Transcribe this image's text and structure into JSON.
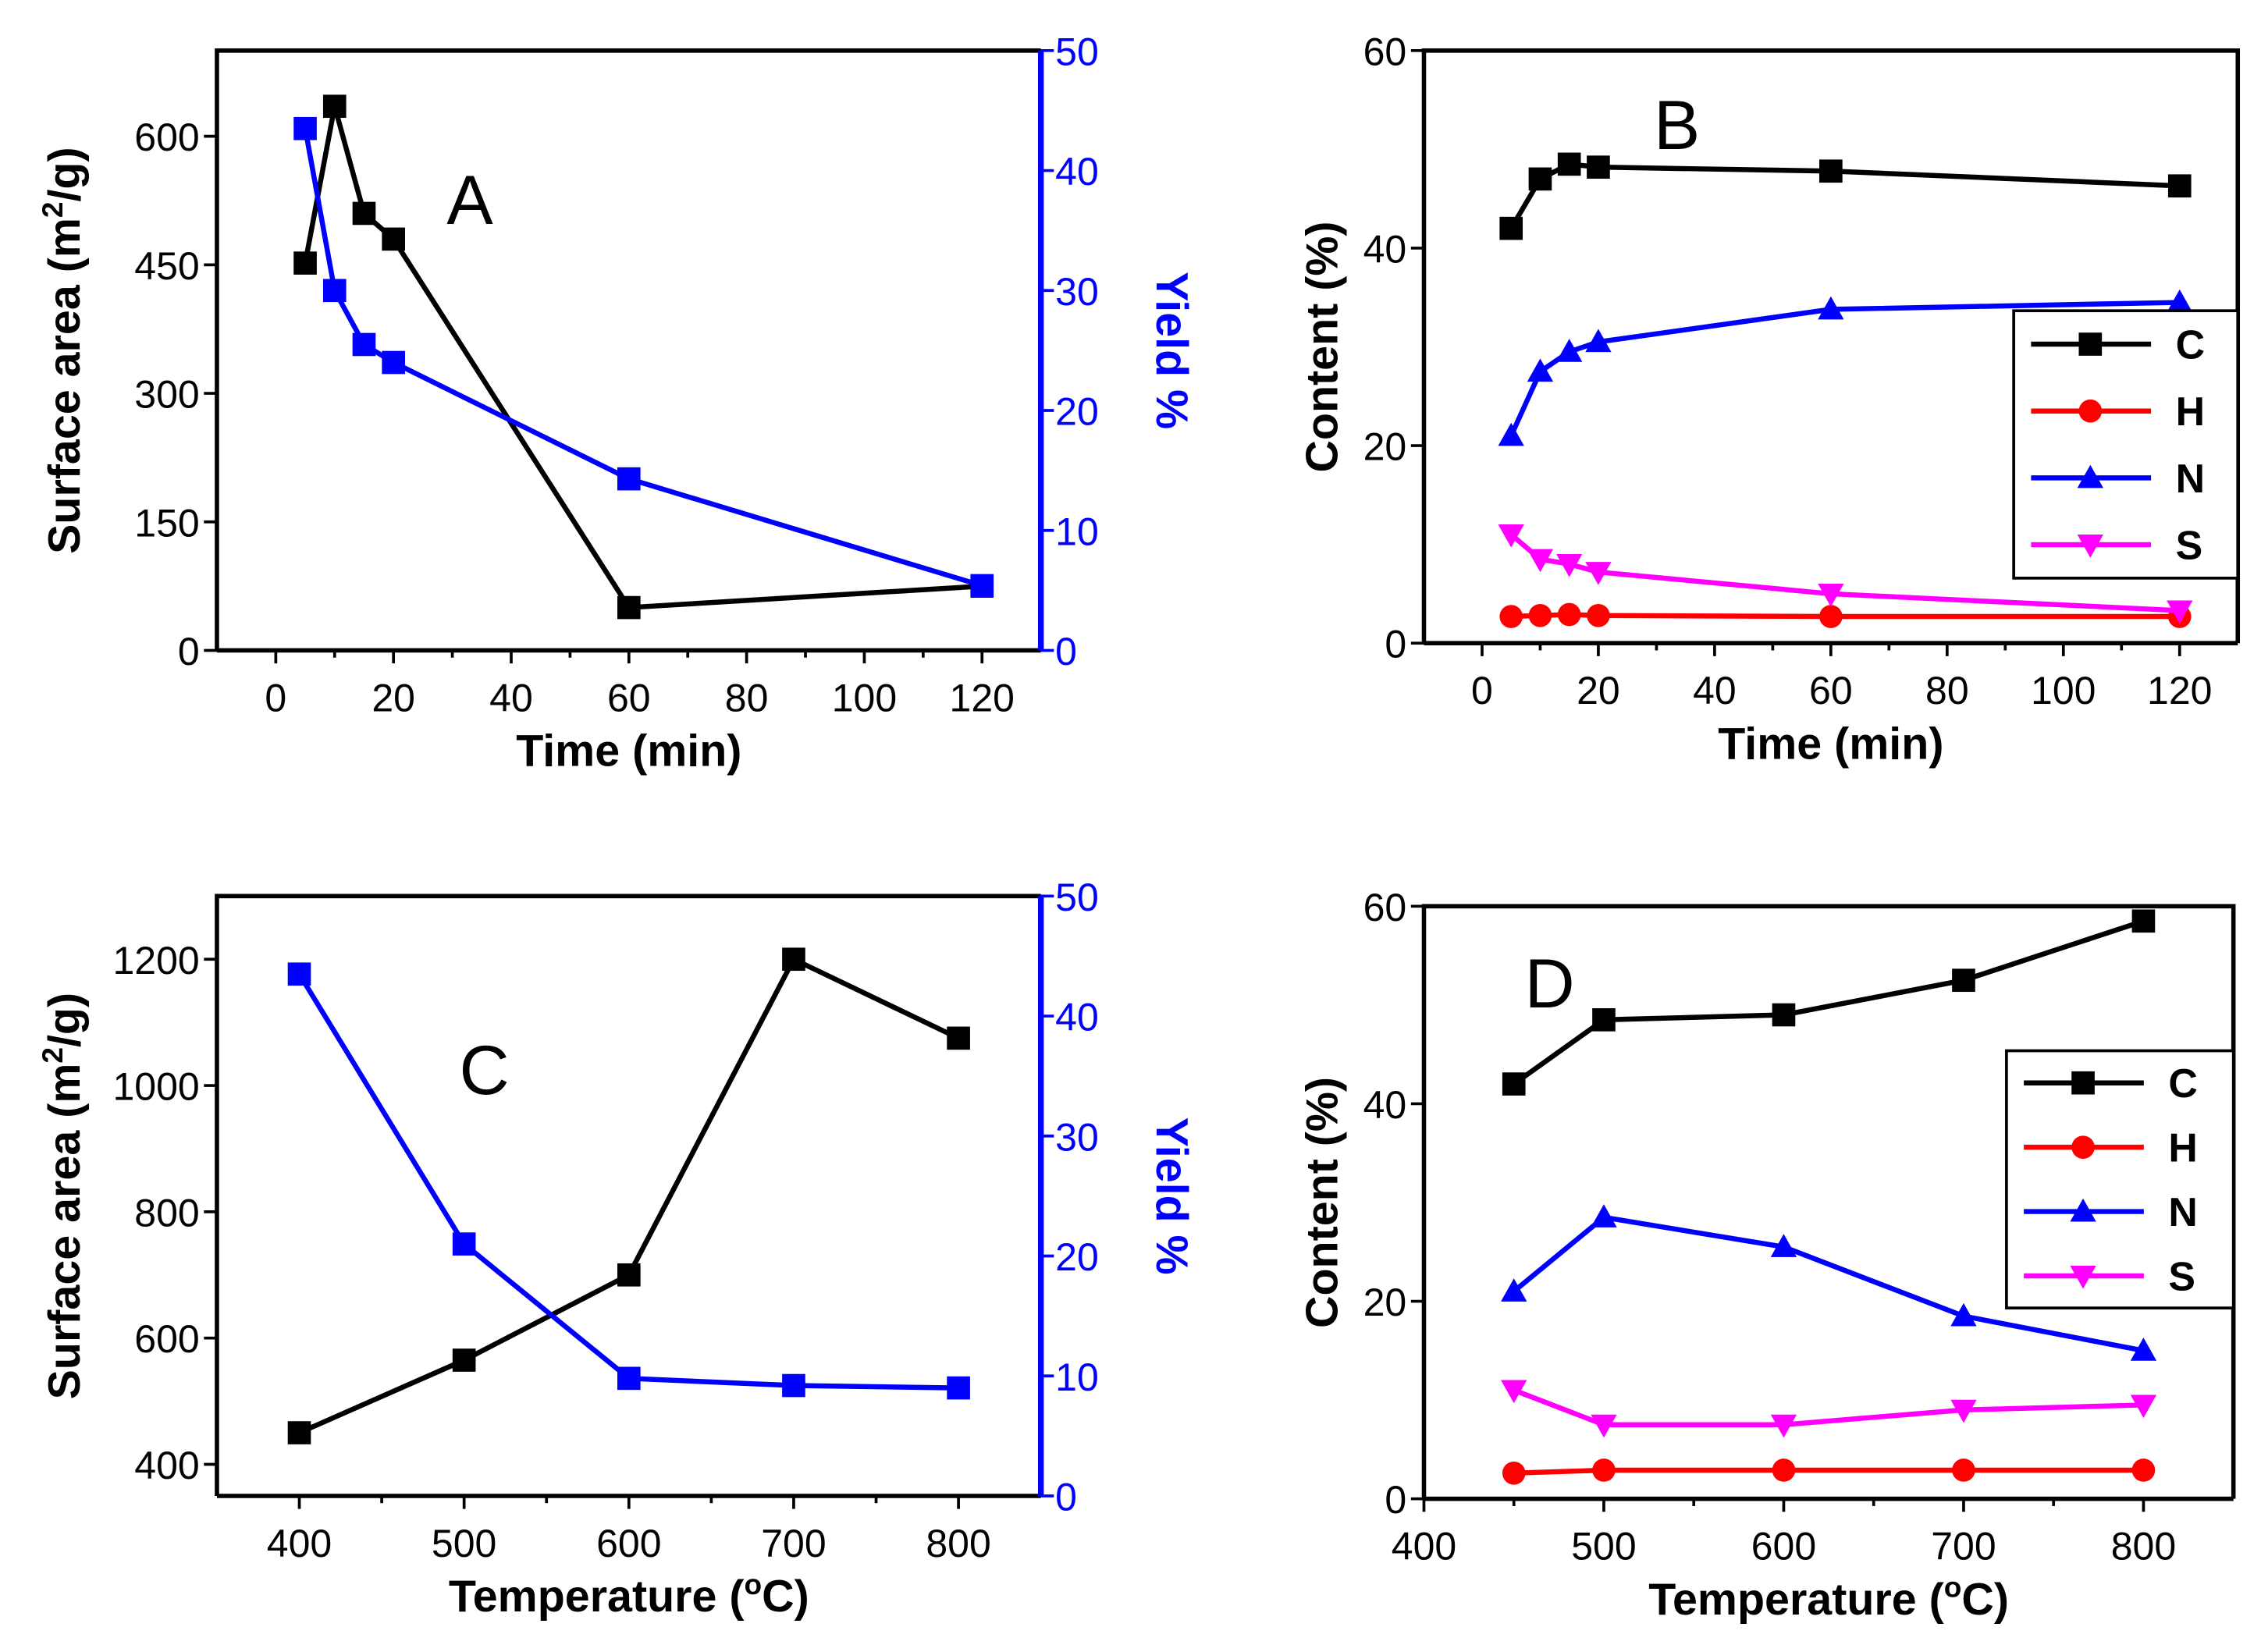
{
  "chart_data": [
    {
      "type": "line",
      "panel_label": "A",
      "xlabel": "Time (min)",
      "ylabel": "Surface area (m2/g)",
      "ylabel_parts": [
        "Surface area (m",
        "2",
        "/g)"
      ],
      "y2label": "Yield %",
      "xlim": [
        -10,
        130
      ],
      "ylim": [
        0,
        700
      ],
      "y2lim": [
        0,
        50
      ],
      "xticks": [
        0,
        20,
        40,
        60,
        80,
        100,
        120
      ],
      "yticks": [
        0,
        150,
        300,
        450,
        600
      ],
      "y2ticks": [
        0,
        10,
        20,
        30,
        40,
        50
      ],
      "x": [
        5,
        10,
        15,
        20,
        60,
        120
      ],
      "series": [
        {
          "name": "Surface area",
          "axis": "left",
          "color": "#000000",
          "marker": "square",
          "values": [
            452,
            635,
            510,
            480,
            50,
            75
          ]
        },
        {
          "name": "Yield",
          "axis": "right",
          "color": "#0000ff",
          "marker": "square",
          "values": [
            43.5,
            30,
            25.5,
            24,
            14.3,
            5.4
          ]
        }
      ]
    },
    {
      "type": "line",
      "panel_label": "B",
      "xlabel": "Time (min)",
      "ylabel": "Content (%)",
      "xlim": [
        -10,
        130
      ],
      "ylim": [
        0,
        60
      ],
      "xticks": [
        0,
        20,
        40,
        60,
        80,
        100,
        120
      ],
      "yticks": [
        0,
        20,
        40,
        60
      ],
      "legend": "right",
      "x": [
        5,
        10,
        15,
        20,
        60,
        120
      ],
      "series": [
        {
          "name": "C",
          "color": "#000000",
          "marker": "square",
          "values": [
            42,
            47,
            48.5,
            48.2,
            47.8,
            46.3
          ]
        },
        {
          "name": "H",
          "color": "#ff0000",
          "marker": "circle",
          "values": [
            2.7,
            2.8,
            2.9,
            2.8,
            2.7,
            2.7
          ]
        },
        {
          "name": "N",
          "color": "#0000ff",
          "marker": "triangle-up",
          "values": [
            21,
            27.5,
            29.5,
            30.5,
            33.8,
            34.5
          ]
        },
        {
          "name": "S",
          "color": "#ff00ff",
          "marker": "triangle-down",
          "values": [
            11,
            8.5,
            8,
            7.2,
            5,
            3.3
          ]
        }
      ]
    },
    {
      "type": "line",
      "panel_label": "C",
      "xlabel": "Temperature (oC)",
      "xlabel_parts": [
        "Temperature (",
        "o",
        "C)"
      ],
      "ylabel": "Surface area (m2/g)",
      "ylabel_parts": [
        "Surface area (m",
        "2",
        "/g)"
      ],
      "y2label": "Yield %",
      "xlim": [
        350,
        850
      ],
      "ylim": [
        350,
        1300
      ],
      "y2lim": [
        0,
        50
      ],
      "xticks": [
        400,
        500,
        600,
        700,
        800
      ],
      "yticks": [
        400,
        600,
        800,
        1000,
        1200
      ],
      "y2ticks": [
        0,
        10,
        20,
        30,
        40,
        50
      ],
      "x": [
        400,
        500,
        600,
        700,
        800
      ],
      "series": [
        {
          "name": "Surface area",
          "axis": "left",
          "color": "#000000",
          "marker": "square",
          "values": [
            450,
            565,
            700,
            1200,
            1075
          ]
        },
        {
          "name": "Yield",
          "axis": "right",
          "color": "#0000ff",
          "marker": "square",
          "values": [
            43.5,
            21,
            9.8,
            9.2,
            9
          ]
        }
      ]
    },
    {
      "type": "line",
      "panel_label": "D",
      "xlabel": "Temperature (oC)",
      "xlabel_parts": [
        "Temperature (",
        "o",
        "C)"
      ],
      "ylabel": "Content (%)",
      "xlim": [
        400,
        850
      ],
      "ylim": [
        0,
        60
      ],
      "xticks": [
        400,
        500,
        600,
        700,
        800
      ],
      "yticks": [
        0,
        20,
        40,
        60
      ],
      "legend": "right",
      "x": [
        450,
        500,
        600,
        700,
        800
      ],
      "series": [
        {
          "name": "C",
          "color": "#000000",
          "marker": "square",
          "values": [
            42,
            48.5,
            49,
            52.5,
            58.5
          ]
        },
        {
          "name": "H",
          "color": "#ff0000",
          "marker": "circle",
          "values": [
            2.6,
            2.9,
            2.9,
            2.9,
            2.9
          ]
        },
        {
          "name": "N",
          "color": "#0000ff",
          "marker": "triangle-up",
          "values": [
            21,
            28.5,
            25.5,
            18.5,
            15
          ]
        },
        {
          "name": "S",
          "color": "#ff00ff",
          "marker": "triangle-down",
          "values": [
            11,
            7.5,
            7.5,
            9,
            9.5
          ]
        }
      ]
    }
  ]
}
